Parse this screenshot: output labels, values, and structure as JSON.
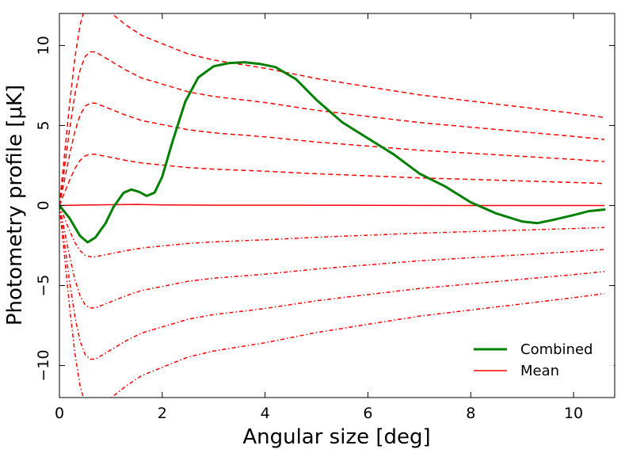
{
  "chart_data": {
    "type": "line",
    "title": "",
    "xlabel": "Angular size [deg]",
    "ylabel": "Photometry profile [μK]",
    "xlim": [
      0,
      10.8
    ],
    "ylim": [
      -12,
      12
    ],
    "x_ticks": [
      "0",
      "2",
      "4",
      "6",
      "8",
      "10"
    ],
    "y_ticks": [
      "−10",
      "−5",
      "0",
      "5",
      "10"
    ],
    "legend_position": "lower-right",
    "colors": {
      "combined": "#008000",
      "mean": "#ff0000",
      "bands": "#ff0000"
    },
    "series": [
      {
        "name": "Combined",
        "style": "solid-thick",
        "x": [
          0,
          0.2,
          0.4,
          0.55,
          0.7,
          0.9,
          1.05,
          1.25,
          1.4,
          1.55,
          1.7,
          1.85,
          2.0,
          2.2,
          2.45,
          2.7,
          3.0,
          3.3,
          3.6,
          3.9,
          4.2,
          4.6,
          5.0,
          5.5,
          6.0,
          6.5,
          7.0,
          7.5,
          8.0,
          8.5,
          9.0,
          9.3,
          9.6,
          10.0,
          10.3,
          10.6
        ],
        "y": [
          0,
          -0.8,
          -1.9,
          -2.3,
          -2.0,
          -1.1,
          -0.1,
          0.8,
          1.0,
          0.85,
          0.6,
          0.8,
          1.8,
          4.0,
          6.5,
          8.0,
          8.7,
          8.9,
          8.95,
          8.85,
          8.65,
          7.9,
          6.6,
          5.2,
          4.2,
          3.2,
          2.0,
          1.2,
          0.2,
          -0.5,
          -1.0,
          -1.1,
          -0.9,
          -0.6,
          -0.35,
          -0.25
        ]
      },
      {
        "name": "Mean",
        "style": "solid-thin",
        "x": [
          0,
          0.5,
          1.0,
          1.5,
          2.0,
          3.0,
          4.0,
          6.0,
          8.0,
          10.6
        ],
        "y": [
          0,
          0.03,
          0.05,
          0.07,
          0.04,
          0.02,
          0.02,
          0.01,
          0.0,
          0.0
        ]
      }
    ],
    "bands": {
      "x": [
        0,
        0.1,
        0.2,
        0.3,
        0.4,
        0.5,
        0.6,
        0.7,
        0.8,
        1.0,
        1.3,
        1.6,
        2.0,
        2.5,
        3.0,
        3.5,
        4.0,
        5.0,
        6.0,
        7.0,
        8.0,
        9.0,
        10.0,
        10.6
      ],
      "shape": [
        0,
        0.25,
        0.5,
        0.72,
        0.88,
        0.97,
        1.0,
        1.0,
        0.98,
        0.94,
        0.88,
        0.83,
        0.79,
        0.74,
        0.71,
        0.69,
        0.67,
        0.62,
        0.58,
        0.54,
        0.51,
        0.48,
        0.45,
        0.43
      ],
      "upper_amplitudes": [
        3.2,
        6.4,
        9.6,
        12.8
      ],
      "lower_amplitudes": [
        3.2,
        6.4,
        9.6,
        12.8
      ]
    },
    "legend": [
      "Combined",
      "Mean"
    ]
  }
}
